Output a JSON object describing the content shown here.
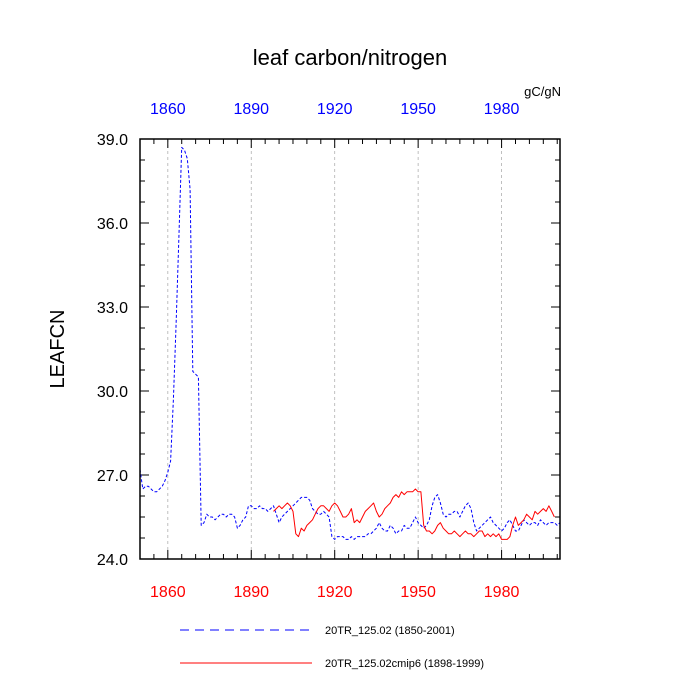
{
  "chart_data": {
    "type": "line",
    "title": "leaf carbon/nitrogen",
    "units": "gC/gN",
    "ylabel": "LEAFCN",
    "xlabel": "",
    "xlim": [
      1850,
      2001
    ],
    "ylim": [
      24.0,
      39.0
    ],
    "yticks": [
      "24.0",
      "27.0",
      "30.0",
      "33.0",
      "36.0",
      "39.0"
    ],
    "ytick_values": [
      24,
      27,
      30,
      33,
      36,
      39
    ],
    "xticks_bottom": [
      "1860",
      "1890",
      "1920",
      "1950",
      "1980"
    ],
    "xticks_top": [
      "1860",
      "1890",
      "1920",
      "1950",
      "1980"
    ],
    "xtick_values": [
      1860,
      1890,
      1920,
      1950,
      1980
    ],
    "grid": "vertical dashed at x ticks",
    "legend_placement": "bottom",
    "series": [
      {
        "name": "20TR_125.02 (1850-2001)",
        "color": "#0000ff",
        "style": "dashed",
        "x": [
          1850,
          1851,
          1852,
          1853,
          1854,
          1855,
          1856,
          1857,
          1858,
          1859,
          1860,
          1861,
          1862,
          1863,
          1864,
          1865,
          1866,
          1867,
          1868,
          1869,
          1870,
          1871,
          1872,
          1873,
          1874,
          1875,
          1876,
          1877,
          1878,
          1879,
          1880,
          1881,
          1882,
          1883,
          1884,
          1885,
          1886,
          1887,
          1888,
          1889,
          1890,
          1891,
          1892,
          1893,
          1894,
          1895,
          1896,
          1897,
          1898,
          1899,
          1900,
          1901,
          1902,
          1903,
          1904,
          1905,
          1906,
          1907,
          1908,
          1909,
          1910,
          1911,
          1912,
          1913,
          1914,
          1915,
          1916,
          1917,
          1918,
          1919,
          1920,
          1921,
          1922,
          1923,
          1924,
          1925,
          1926,
          1927,
          1928,
          1929,
          1930,
          1931,
          1932,
          1933,
          1934,
          1935,
          1936,
          1937,
          1938,
          1939,
          1940,
          1941,
          1942,
          1943,
          1944,
          1945,
          1946,
          1947,
          1948,
          1949,
          1950,
          1951,
          1952,
          1953,
          1954,
          1955,
          1956,
          1957,
          1958,
          1959,
          1960,
          1961,
          1962,
          1963,
          1964,
          1965,
          1966,
          1967,
          1968,
          1969,
          1970,
          1971,
          1972,
          1973,
          1974,
          1975,
          1976,
          1977,
          1978,
          1979,
          1980,
          1981,
          1982,
          1983,
          1984,
          1985,
          1986,
          1987,
          1988,
          1989,
          1990,
          1991,
          1992,
          1993,
          1994,
          1995,
          1996,
          1997,
          1998,
          1999,
          2000,
          2001
        ],
        "values": [
          27.2,
          26.5,
          26.6,
          26.6,
          26.5,
          26.4,
          26.4,
          26.5,
          26.6,
          26.8,
          27.1,
          27.5,
          29.7,
          32.5,
          35.5,
          38.7,
          38.6,
          38.3,
          37.2,
          30.7,
          30.6,
          30.5,
          25.2,
          25.3,
          25.6,
          25.5,
          25.5,
          25.4,
          25.5,
          25.6,
          25.6,
          25.5,
          25.6,
          25.6,
          25.5,
          25.1,
          25.2,
          25.4,
          25.5,
          25.9,
          25.9,
          25.8,
          25.8,
          25.9,
          25.8,
          25.8,
          25.7,
          25.8,
          25.9,
          25.6,
          25.3,
          25.5,
          25.6,
          25.7,
          25.8,
          25.9,
          26.0,
          26.1,
          26.2,
          26.2,
          26.2,
          26.1,
          25.8,
          25.7,
          25.6,
          25.6,
          25.7,
          25.6,
          25.5,
          24.8,
          24.7,
          24.8,
          24.8,
          24.8,
          24.7,
          24.7,
          24.8,
          24.7,
          24.8,
          24.8,
          24.8,
          24.8,
          24.9,
          24.9,
          25.0,
          25.1,
          25.3,
          25.1,
          25.0,
          25.0,
          25.2,
          25.1,
          24.9,
          25.0,
          25.0,
          25.2,
          25.1,
          25.1,
          25.3,
          25.5,
          25.3,
          25.2,
          25.1,
          25.2,
          25.4,
          25.9,
          26.2,
          26.3,
          26.0,
          25.6,
          25.5,
          25.6,
          25.6,
          25.7,
          25.7,
          25.5,
          25.7,
          25.9,
          26.0,
          25.8,
          25.3,
          25.0,
          25.1,
          25.2,
          25.3,
          25.4,
          25.5,
          25.3,
          25.2,
          25.1,
          25.0,
          25.1,
          25.3,
          25.4,
          25.2,
          25.0,
          25.0,
          25.2,
          25.4,
          25.3,
          25.2,
          25.3,
          25.3,
          25.2,
          25.4,
          25.3,
          25.2,
          25.3,
          25.3,
          25.3,
          25.2,
          25.3
        ]
      },
      {
        "name": "20TR_125.02cmip6 (1898-1999)",
        "color": "#ff0000",
        "style": "solid",
        "x": [
          1898,
          1899,
          1900,
          1901,
          1902,
          1903,
          1904,
          1905,
          1906,
          1907,
          1908,
          1909,
          1910,
          1911,
          1912,
          1913,
          1914,
          1915,
          1916,
          1917,
          1918,
          1919,
          1920,
          1921,
          1922,
          1923,
          1924,
          1925,
          1926,
          1927,
          1928,
          1929,
          1930,
          1931,
          1932,
          1933,
          1934,
          1935,
          1936,
          1937,
          1938,
          1939,
          1940,
          1941,
          1942,
          1943,
          1944,
          1945,
          1946,
          1947,
          1948,
          1949,
          1950,
          1951,
          1952,
          1953,
          1954,
          1955,
          1956,
          1957,
          1958,
          1959,
          1960,
          1961,
          1962,
          1963,
          1964,
          1965,
          1966,
          1967,
          1968,
          1969,
          1970,
          1971,
          1972,
          1973,
          1974,
          1975,
          1976,
          1977,
          1978,
          1979,
          1980,
          1981,
          1982,
          1983,
          1984,
          1985,
          1986,
          1987,
          1988,
          1989,
          1990,
          1991,
          1992,
          1993,
          1994,
          1995,
          1996,
          1997,
          1998,
          1999
        ],
        "values": [
          25.7,
          25.8,
          25.9,
          25.8,
          25.9,
          26.0,
          25.9,
          25.7,
          24.9,
          24.8,
          25.1,
          25.0,
          25.2,
          25.3,
          25.4,
          25.6,
          25.8,
          25.9,
          25.9,
          25.8,
          25.7,
          25.9,
          26.0,
          25.9,
          25.7,
          25.5,
          25.5,
          25.6,
          25.8,
          25.3,
          25.4,
          25.3,
          25.5,
          25.7,
          25.8,
          25.9,
          26.0,
          25.7,
          25.5,
          25.6,
          25.8,
          25.9,
          26.0,
          26.2,
          26.3,
          26.2,
          26.4,
          26.3,
          26.4,
          26.4,
          26.4,
          26.5,
          26.4,
          26.4,
          25.2,
          25.0,
          25.0,
          24.9,
          25.0,
          25.2,
          25.3,
          25.1,
          25.0,
          24.9,
          24.9,
          25.0,
          24.9,
          24.8,
          24.9,
          25.0,
          24.9,
          24.9,
          24.8,
          24.9,
          25.0,
          25.0,
          24.8,
          24.9,
          24.8,
          24.9,
          24.8,
          24.9,
          24.7,
          24.7,
          24.7,
          24.8,
          25.2,
          25.5,
          25.2,
          25.3,
          25.4,
          25.6,
          25.5,
          25.4,
          25.7,
          25.6,
          25.7,
          25.8,
          25.7,
          25.9,
          25.7,
          25.5
        ]
      }
    ]
  }
}
